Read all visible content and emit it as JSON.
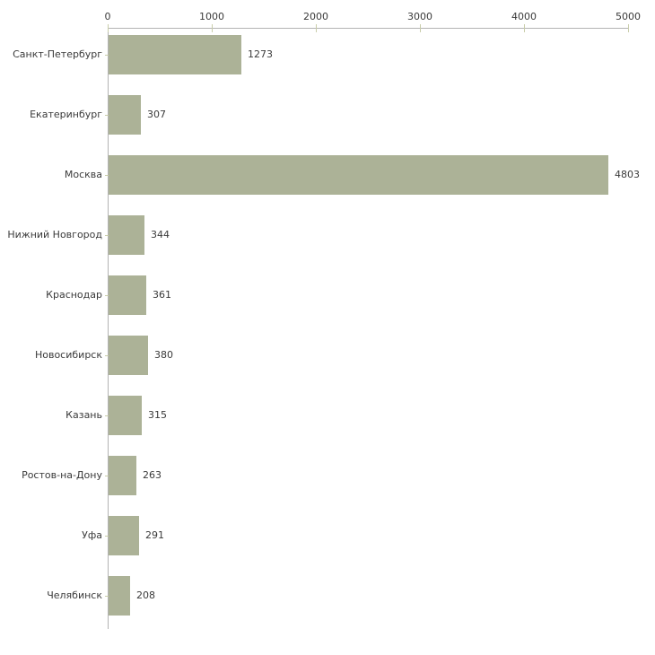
{
  "chart_data": {
    "type": "bar",
    "orientation": "horizontal",
    "title": "",
    "xlabel": "",
    "ylabel": "",
    "categories": [
      "Санкт-Петербург",
      "Екатеринбург",
      "Москва",
      "Нижний Новгород",
      "Краснодар",
      "Новосибирск",
      "Казань",
      "Ростов-на-Дону",
      "Уфа",
      "Челябинск"
    ],
    "values": [
      1273,
      307,
      4803,
      344,
      361,
      380,
      315,
      263,
      291,
      208
    ],
    "value_labels": [
      "1273",
      "307",
      "4803",
      "344",
      "361",
      "380",
      "315",
      "263",
      "291",
      "208"
    ],
    "xticks": [
      0,
      1000,
      2000,
      3000,
      4000,
      5000
    ],
    "xtick_labels": [
      "0",
      "1000",
      "2000",
      "3000",
      "4000",
      "5000"
    ],
    "xlim": [
      0,
      5000
    ],
    "grid": false,
    "legend": null,
    "axis_position": "top",
    "colors": {
      "bar": "#acb297",
      "axis_line": "#b3b3b3",
      "tick_mark": "#c9cdaa",
      "text": "#3a3a3a",
      "background": "#ffffff"
    }
  }
}
